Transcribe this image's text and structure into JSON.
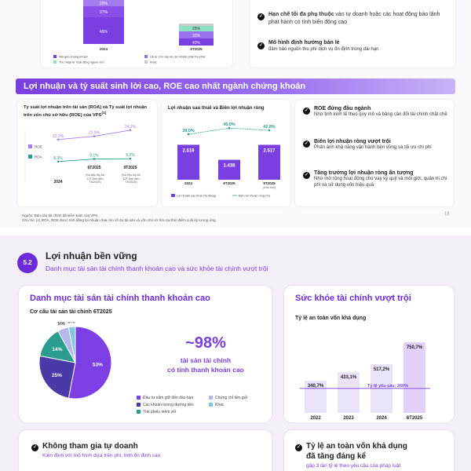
{
  "page1": {
    "stack_values": [
      "20%",
      "27%",
      "49%"
    ],
    "stack2_values": [
      "25%",
      "32%",
      "42%"
    ],
    "stack_xlabels": [
      "2024",
      "6T2025"
    ],
    "stack_legend": [
      "Môi giới chứng khoán",
      "Lãi từ cho vay và các khoản phải thu khác",
      "Thu nhập từ hoạt động nguồn vốn",
      "Khác"
    ],
    "top_right": [
      {
        "title": "Hạn chế tối đa phụ thuộc",
        "text": "vào tự doanh hoặc các hoạt động bảo lãnh phát hành có tính biến động cao"
      },
      {
        "title": "Mô hình định hướng bán lẻ",
        "text": "đảm bảo nguồn thu phí dịch vụ ổn định trong dài hạn"
      }
    ],
    "banner": "Lợi nhuận và tỷ suất sinh lời cao, ROE cao nhất ngành chứng khoán",
    "roe_card": {
      "title": "Tỷ suất lợi nhuận trên tài sản (ROA) và Tỷ suất lợi nhuận trên vốn chủ sở hữu (ROE) của VPS",
      "title_sup": "(1)",
      "legend_roe": "ROE",
      "legend_roa": "ROA",
      "roe_values": [
        "22,2%",
        "22,9%",
        "24,2%"
      ],
      "roa_values": [
        "8,3%",
        "9,1%",
        "9,2%"
      ],
      "xlabels": [
        "2024",
        "6T2025",
        "9T2025"
      ],
      "notes": [
        "(Số liệu lũy kế 12T tính đến T6/2025)",
        "(Số liệu lũy kế 12T tính đến T9/2025)"
      ]
    },
    "profit_card": {
      "title": "Lợi nhuận sau thuế và Biên lợi nhuận ròng",
      "margins": [
        "39,0%",
        "45,0%",
        "42,8%"
      ],
      "bars": [
        "2.519",
        "1.438",
        "2.517"
      ],
      "xlabels": [
        "2024",
        "6T2025",
        "9T2025"
      ],
      "xnote": "(ước tính)",
      "legend_bar": "Lợi nhuận sau thuế (Tỷ đồng)",
      "legend_line": "Biên lợi nhuận ròng (%)"
    },
    "highlights": [
      {
        "title": "ROE đứng đầu ngành",
        "text": "Nhờ tinh kinh tế theo quy mô và bảng cân đối tài chính chặt chẽ"
      },
      {
        "title": "Biên lợi nhuận ròng vượt trội",
        "text": "Phản ánh khả năng vận hành bền vững và tối ưu chi phí"
      },
      {
        "title": "Tăng trưởng lợi nhuận ròng ấn tượng",
        "text": "Nhờ mở rộng hoạt động cho vay ký quỹ và môi giới, quản trị chi phí và sử dụng vốn hiệu quả"
      }
    ],
    "footnote1": "Nguồn: Báo cáo tài chính đã kiểm toán của VPS.",
    "footnote2": "Ghi chú: (1) ROA, ROE được tính bằng lợi nhuận chia cho số dư tài sản và vốn chủ sở hữu tại thời điểm cuối kỳ tương ứng",
    "page_number": "18"
  },
  "page2": {
    "section_number": "5.2",
    "title": "Lợi nhuận bền vững",
    "subtitle": "Danh mục tài sản tài chính thanh khoản cao và sức khỏe tài chính vượt trội",
    "left_card": {
      "heading": "Danh mục tài sản tài chính thanh khoản cao",
      "chart_title": "Cơ cấu tài sản tài chính 6T2025",
      "big_number": "~98%",
      "big_caption1": "tài sản tài chính",
      "big_caption2": "có tính thanh khoản cao",
      "legend": [
        "Đầu tư nắm giữ đến đáo hạn",
        "Chứng chỉ tiền gửi",
        "Các khoản tương đương tiền",
        "Khác",
        "Trái phiếu niêm yết"
      ]
    },
    "right_card": {
      "heading": "Sức khỏe tài chính vượt trội",
      "chart_title": "Tỷ lệ an toàn vốn khả dụng",
      "threshold_label": "Tỷ lệ yêu cầu: 260%"
    },
    "bottom_left": {
      "title": "Không tham gia tự doanh",
      "text": "Kiên định với mô hình dựa trên phí, tính ổn định cao"
    },
    "bottom_right": {
      "title": "Tỷ lệ an toàn vốn khả dụng",
      "title2": "đã tăng đáng kể",
      "text": "gấp 3 lần tỷ lệ theo yêu cầu của pháp luật"
    }
  },
  "chart_data": [
    {
      "type": "line",
      "title": "Tỷ suất lợi nhuận trên tài sản (ROA) và Tỷ suất lợi nhuận trên vốn chủ sở hữu (ROE) của VPS",
      "categories": [
        "2024",
        "6T2025",
        "9T2025"
      ],
      "series": [
        {
          "name": "ROE",
          "values": [
            22.2,
            22.9,
            24.2
          ]
        },
        {
          "name": "ROA",
          "values": [
            8.3,
            9.1,
            9.2
          ]
        }
      ]
    },
    {
      "type": "bar",
      "title": "Lợi nhuận sau thuế và Biên lợi nhuận ròng",
      "categories": [
        "2024",
        "6T2025",
        "9T2025"
      ],
      "series": [
        {
          "name": "Lợi nhuận sau thuế (Tỷ đồng)",
          "values": [
            2519,
            1438,
            2517
          ]
        },
        {
          "name": "Biên lợi nhuận ròng (%)",
          "values": [
            39.0,
            45.0,
            42.8
          ]
        }
      ]
    },
    {
      "type": "pie",
      "title": "Cơ cấu tài sản tài chính 6T2025",
      "categories": [
        "Đầu tư nắm giữ đến đáo hạn",
        "Các khoản tương đương tiền",
        "Trái phiếu niêm yết",
        "Chứng chỉ tiền gửi",
        "Khác"
      ],
      "values": [
        53,
        25,
        14,
        5,
        3
      ],
      "colors": [
        "#7b3fe4",
        "#4a3aa8",
        "#2a9d8f",
        "#b6b6e8",
        "#7ec8e3"
      ]
    },
    {
      "type": "bar",
      "title": "Tỷ lệ an toàn vốn khả dụng",
      "categories": [
        "2022",
        "2023",
        "2024",
        "6T2025"
      ],
      "values": [
        340.7,
        433.1,
        517.2,
        750.7
      ],
      "value_labels": [
        "340,7%",
        "433,1%",
        "517,2%",
        "750,7%"
      ],
      "threshold": 260,
      "ylim": [
        0,
        800
      ]
    }
  ]
}
